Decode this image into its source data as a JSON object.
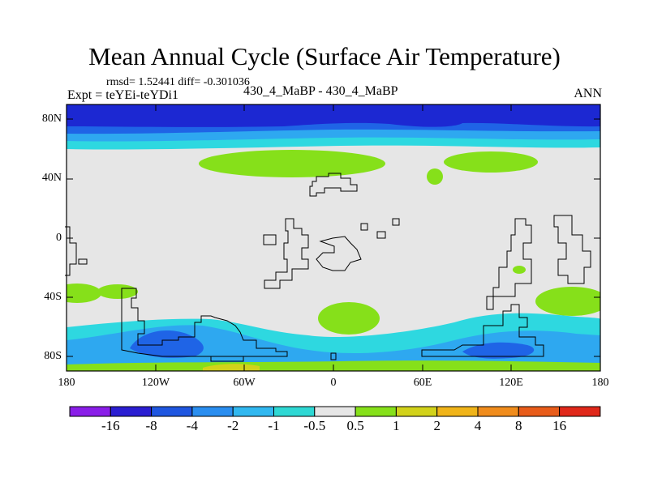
{
  "title": "Mean Annual Cycle (Surface Air Temperature)",
  "stats": "rmsd= 1.52441 diff= -0.301036",
  "experiment": "Expt = teYEi-teYDi1",
  "case_label": "430_4_MaBP - 430_4_MaBP",
  "season": "ANN",
  "lat_labels": [
    "80N",
    "40N",
    "0",
    "40S",
    "80S"
  ],
  "lon_labels": [
    "180",
    "120W",
    "60W",
    "0",
    "60E",
    "120E",
    "180"
  ],
  "colorbar": {
    "colors": [
      "#8a1ee8",
      "#2b1ed2",
      "#1f56e0",
      "#2a8ef0",
      "#31b8f0",
      "#2ed8d4",
      "#e6e6e6",
      "#86e01a",
      "#d2d21a",
      "#f0b419",
      "#f08c1c",
      "#e85c1a",
      "#e0281a"
    ],
    "labels": [
      "-16",
      "-8",
      "-4",
      "-2",
      "-1",
      "-0.5",
      "0.5",
      "1",
      "2",
      "4",
      "8",
      "16"
    ]
  },
  "palette": {
    "neutral": "#e6e6e6",
    "cold_strong": "#1c28d2",
    "cold": "#1f64e6",
    "cool": "#2ea8f0",
    "cool_light": "#2ed8e0",
    "warm": "#86e01a"
  }
}
